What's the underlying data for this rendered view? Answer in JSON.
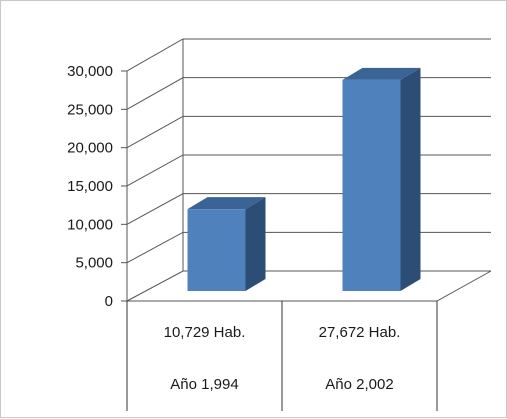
{
  "chart_data": {
    "type": "bar",
    "categories": [
      "Año 1,994",
      "Año 2,002"
    ],
    "value_labels": [
      "10,729 Hab.",
      "27,672 Hab."
    ],
    "values": [
      10729,
      27672
    ],
    "title": "",
    "xlabel": "",
    "ylabel": "",
    "ylim": [
      0,
      30000
    ],
    "yticks": [
      0,
      5000,
      10000,
      15000,
      20000,
      25000,
      30000
    ],
    "ytick_labels": [
      "0",
      "5,000",
      "10,000",
      "15,000",
      "20,000",
      "25,000",
      "30,000"
    ],
    "grid": true,
    "three_d": true,
    "colors": {
      "bar_front": "#4f81bd",
      "bar_side": "#2c4d75",
      "bar_top": "#3a6396",
      "grid": "#555555"
    }
  }
}
